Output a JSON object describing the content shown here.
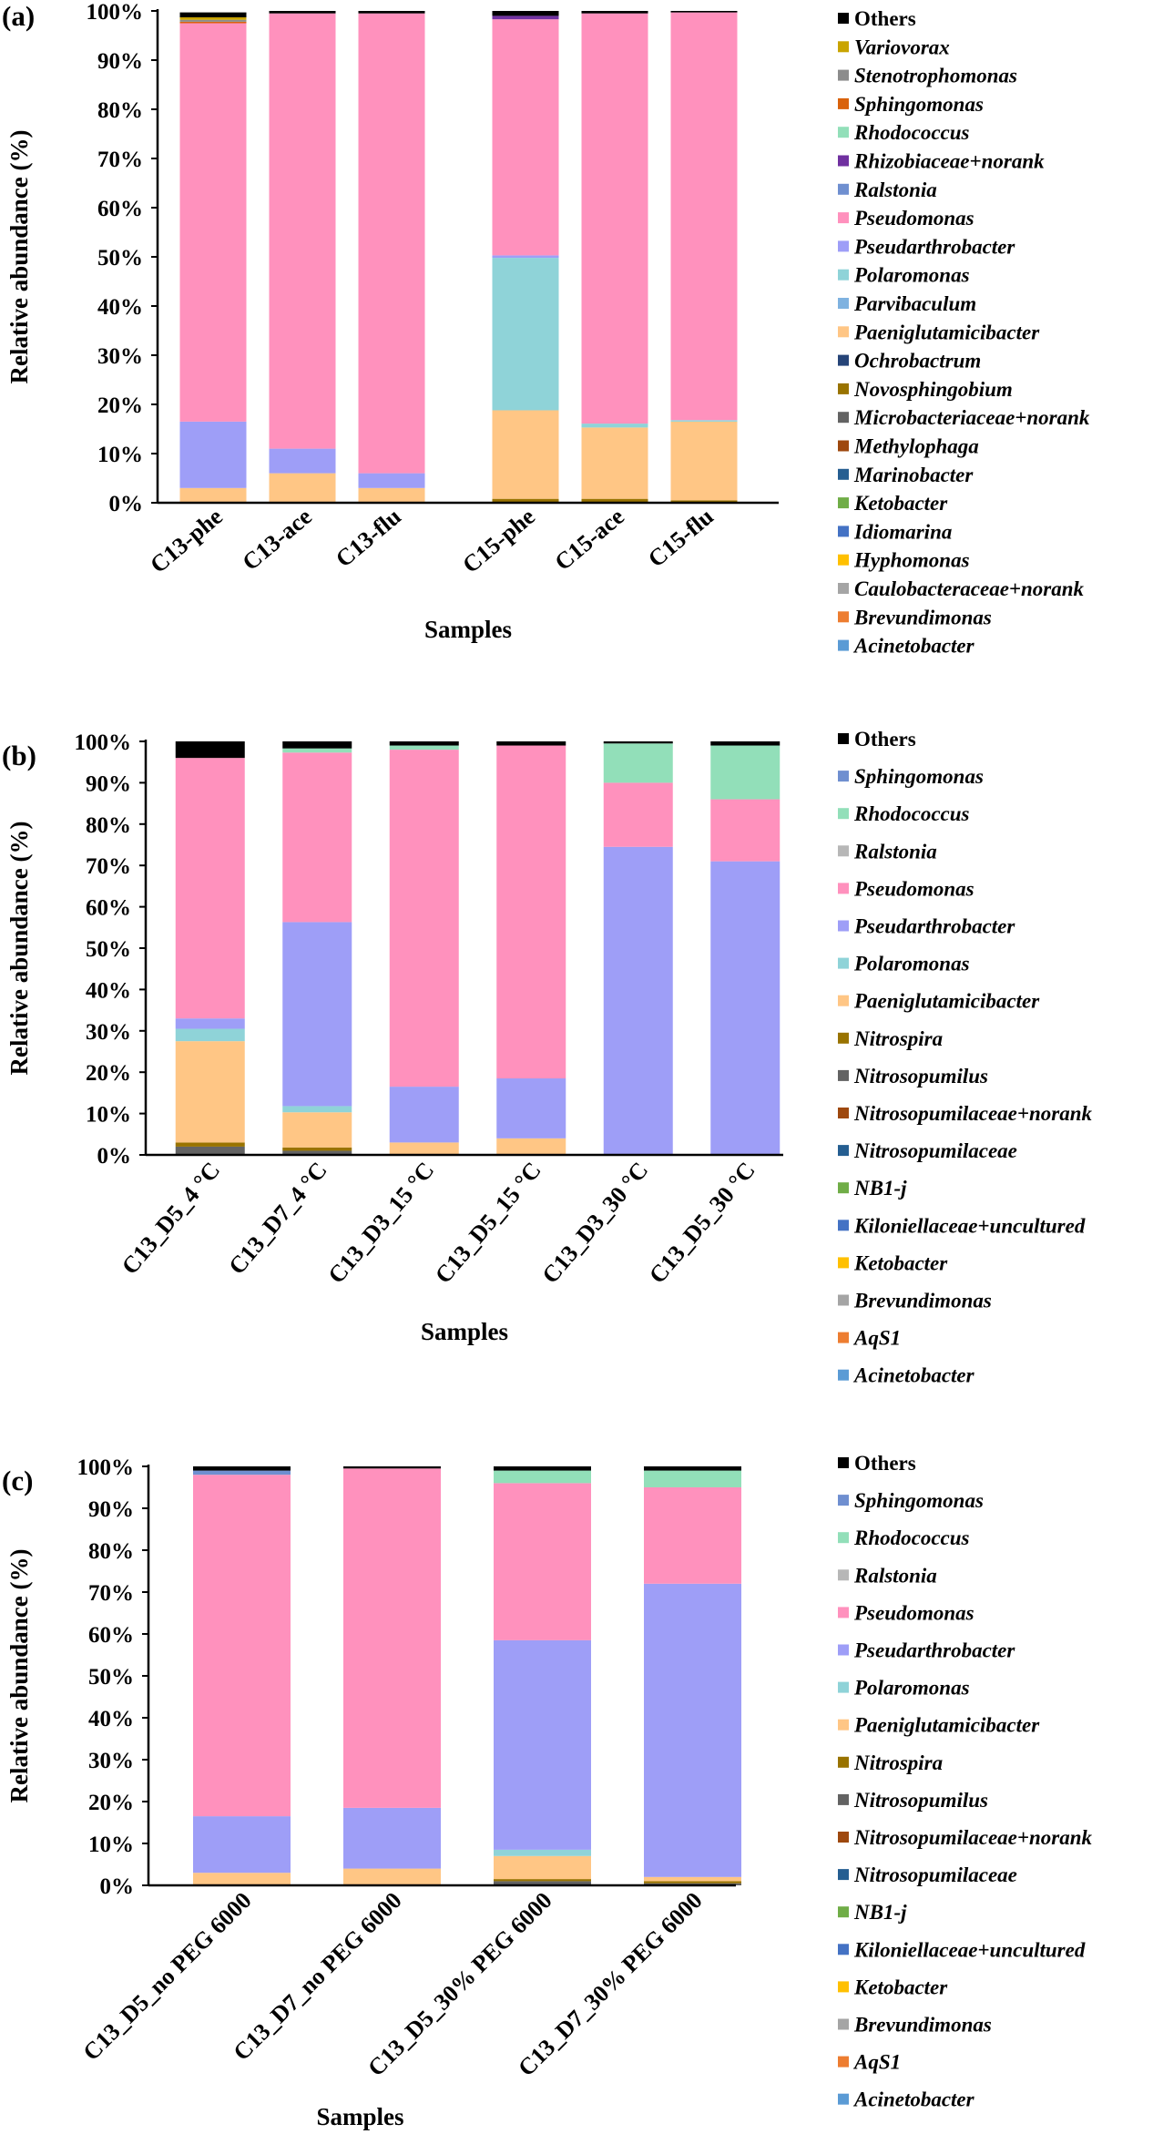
{
  "chart_data": [
    {
      "panel": "(a)",
      "type": "bar",
      "stacked": true,
      "ylabel": "Relative abundance (%)",
      "xlabel": "Samples",
      "ylim": [
        0,
        100
      ],
      "yticks": [
        "0%",
        "10%",
        "20%",
        "30%",
        "40%",
        "50%",
        "60%",
        "70%",
        "80%",
        "90%",
        "100%"
      ],
      "categories": [
        "C13-phe",
        "C13-ace",
        "C13-flu",
        "C15-phe",
        "C15-ace",
        "C15-flu"
      ],
      "category_slots": [
        0,
        1,
        2,
        3.5,
        4.5,
        5.5
      ],
      "series": [
        {
          "name": "Acinetobacter",
          "color": "#5b9bd5",
          "values": [
            0,
            0,
            0,
            0,
            0,
            0
          ]
        },
        {
          "name": "Brevundimonas",
          "color": "#ed7d31",
          "values": [
            0,
            0,
            0,
            0,
            0,
            0
          ]
        },
        {
          "name": "Caulobacteraceae+norank",
          "color": "#a5a5a5",
          "values": [
            0,
            0,
            0,
            0,
            0,
            0
          ]
        },
        {
          "name": "Hyphomonas",
          "color": "#ffc000",
          "values": [
            0,
            0,
            0,
            0,
            0,
            0
          ]
        },
        {
          "name": "Idiomarina",
          "color": "#4472c4",
          "values": [
            0,
            0,
            0,
            0,
            0,
            0
          ]
        },
        {
          "name": "Ketobacter",
          "color": "#70ad47",
          "values": [
            0,
            0,
            0,
            0,
            0,
            0
          ]
        },
        {
          "name": "Marinobacter",
          "color": "#255e91",
          "values": [
            0,
            0,
            0,
            0,
            0,
            0
          ]
        },
        {
          "name": "Methylophaga",
          "color": "#9e480e",
          "values": [
            0,
            0,
            0,
            0,
            0,
            0
          ]
        },
        {
          "name": "Microbacteriaceae+norank",
          "color": "#636363",
          "values": [
            0,
            0,
            0,
            0,
            0,
            0
          ]
        },
        {
          "name": "Novosphingobium",
          "color": "#997300",
          "values": [
            0,
            0,
            0,
            0.8,
            0.8,
            0.5
          ]
        },
        {
          "name": "Ochrobactrum",
          "color": "#264478",
          "values": [
            0,
            0,
            0,
            0,
            0,
            0
          ]
        },
        {
          "name": "Paeniglutamicibacter",
          "color": "#ffc685",
          "values": [
            3,
            6,
            3,
            18,
            14.5,
            16
          ]
        },
        {
          "name": "Parvibaculum",
          "color": "#7fb2e0",
          "values": [
            0,
            0,
            0,
            0,
            0,
            0
          ]
        },
        {
          "name": "Polaromonas",
          "color": "#8fd3d8",
          "values": [
            0,
            0,
            0,
            31,
            0.8,
            0.3
          ]
        },
        {
          "name": "Pseudarthrobacter",
          "color": "#9e9ef7",
          "values": [
            13.5,
            5,
            3,
            0.5,
            0,
            0
          ]
        },
        {
          "name": "Pseudomonas",
          "color": "#ff91bd",
          "values": [
            81,
            88.5,
            93.5,
            48,
            83.4,
            82.9
          ]
        },
        {
          "name": "Ralstonia",
          "color": "#6f8fd0",
          "values": [
            0,
            0,
            0,
            0,
            0,
            0
          ]
        },
        {
          "name": "Rhizobiaceae+norank",
          "color": "#7030a0",
          "values": [
            0,
            0,
            0,
            0.7,
            0,
            0
          ]
        },
        {
          "name": "Rhodococcus",
          "color": "#92dfb9",
          "values": [
            0,
            0,
            0,
            0,
            0,
            0
          ]
        },
        {
          "name": "Sphingomonas",
          "color": "#d9620c",
          "values": [
            0.3,
            0,
            0,
            0,
            0,
            0
          ]
        },
        {
          "name": "Stenotrophomonas",
          "color": "#8c8c8c",
          "values": [
            0.4,
            0,
            0,
            0,
            0,
            0
          ]
        },
        {
          "name": "Variovorax",
          "color": "#c9a400",
          "values": [
            0.5,
            0,
            0,
            0,
            0,
            0
          ]
        },
        {
          "name": "Others",
          "color": "#000000",
          "values": [
            1,
            0.5,
            0.5,
            1,
            0.5,
            0.3
          ]
        }
      ]
    },
    {
      "panel": "(b)",
      "type": "bar",
      "stacked": true,
      "ylabel": "Relative abundance (%)",
      "xlabel": "Samples",
      "ylim": [
        0,
        100
      ],
      "yticks": [
        "0%",
        "10%",
        "20%",
        "30%",
        "40%",
        "50%",
        "60%",
        "70%",
        "80%",
        "90%",
        "100%"
      ],
      "categories": [
        "C13_D5_4 °C",
        "C13_D7_4 °C",
        "C13_D3_15 °C",
        "C13_D5_15 °C",
        "C13_D3_30 °C",
        "C13_D5_30 °C"
      ],
      "category_slots": [
        0,
        1,
        2,
        3,
        4,
        5
      ],
      "series": [
        {
          "name": "Acinetobacter",
          "color": "#5b9bd5",
          "values": [
            0,
            0,
            0,
            0,
            0,
            0
          ]
        },
        {
          "name": "AqS1",
          "color": "#ed7d31",
          "values": [
            0,
            0,
            0,
            0,
            0,
            0
          ]
        },
        {
          "name": "Brevundimonas",
          "color": "#a5a5a5",
          "values": [
            0,
            0,
            0,
            0,
            0,
            0
          ]
        },
        {
          "name": "Ketobacter",
          "color": "#ffc000",
          "values": [
            0,
            0,
            0,
            0,
            0,
            0
          ]
        },
        {
          "name": "Kiloniellaceae+uncultured",
          "color": "#4472c4",
          "values": [
            0,
            0,
            0,
            0,
            0,
            0
          ]
        },
        {
          "name": "NB1-j",
          "color": "#70ad47",
          "values": [
            0,
            0,
            0,
            0,
            0,
            0
          ]
        },
        {
          "name": "Nitrosopumilaceae",
          "color": "#255e91",
          "values": [
            0,
            0,
            0,
            0,
            0,
            0
          ]
        },
        {
          "name": "Nitrosopumilaceae+norank",
          "color": "#9e480e",
          "values": [
            0,
            0,
            0,
            0,
            0,
            0
          ]
        },
        {
          "name": "Nitrosopumilus",
          "color": "#636363",
          "values": [
            2,
            1,
            0,
            0,
            0,
            0
          ]
        },
        {
          "name": "Nitrospira",
          "color": "#997300",
          "values": [
            1,
            0.8,
            0,
            0,
            0,
            0
          ]
        },
        {
          "name": "Paeniglutamicibacter",
          "color": "#ffc685",
          "values": [
            24.5,
            8.5,
            3,
            4,
            0,
            0
          ]
        },
        {
          "name": "Polaromonas",
          "color": "#8fd3d8",
          "values": [
            3,
            1.5,
            0,
            0,
            0,
            0
          ]
        },
        {
          "name": "Pseudarthrobacter",
          "color": "#9e9ef7",
          "values": [
            2.5,
            44.5,
            13.5,
            14.5,
            74.5,
            71
          ]
        },
        {
          "name": "Pseudomonas",
          "color": "#ff91bd",
          "values": [
            63,
            41,
            81.5,
            80.5,
            15.5,
            15
          ]
        },
        {
          "name": "Ralstonia",
          "color": "#b7b7b7",
          "values": [
            0,
            0,
            0,
            0,
            0,
            0
          ]
        },
        {
          "name": "Rhodococcus",
          "color": "#92dfb9",
          "values": [
            0,
            1,
            1,
            0,
            9.5,
            13
          ]
        },
        {
          "name": "Sphingomonas",
          "color": "#6f8fd0",
          "values": [
            0,
            0,
            0,
            0,
            0,
            0
          ]
        },
        {
          "name": "Others",
          "color": "#000000",
          "values": [
            4,
            1.7,
            1,
            1,
            0.5,
            1
          ]
        }
      ]
    },
    {
      "panel": "(c)",
      "type": "bar",
      "stacked": true,
      "ylabel": "Relative abundance (%)",
      "xlabel": "Samples",
      "ylim": [
        0,
        100
      ],
      "yticks": [
        "0%",
        "10%",
        "20%",
        "30%",
        "40%",
        "50%",
        "60%",
        "70%",
        "80%",
        "90%",
        "100%"
      ],
      "categories": [
        "C13_D5_no PEG 6000",
        "C13_D7_no PEG 6000",
        "C13_D5_30% PEG 6000",
        "C13_D7_30% PEG 6000"
      ],
      "category_slots": [
        0,
        1,
        2,
        3
      ],
      "series": [
        {
          "name": "Acinetobacter",
          "color": "#5b9bd5",
          "values": [
            0,
            0,
            0,
            0
          ]
        },
        {
          "name": "AqS1",
          "color": "#ed7d31",
          "values": [
            0,
            0,
            0,
            0
          ]
        },
        {
          "name": "Brevundimonas",
          "color": "#a5a5a5",
          "values": [
            0,
            0,
            0,
            0
          ]
        },
        {
          "name": "Ketobacter",
          "color": "#ffc000",
          "values": [
            0,
            0,
            0,
            0
          ]
        },
        {
          "name": "Kiloniellaceae+uncultured",
          "color": "#4472c4",
          "values": [
            0,
            0,
            0,
            0
          ]
        },
        {
          "name": "NB1-j",
          "color": "#70ad47",
          "values": [
            0,
            0,
            0,
            0
          ]
        },
        {
          "name": "Nitrosopumilaceae",
          "color": "#255e91",
          "values": [
            0,
            0,
            0,
            0
          ]
        },
        {
          "name": "Nitrosopumilaceae+norank",
          "color": "#9e480e",
          "values": [
            0,
            0,
            0,
            0
          ]
        },
        {
          "name": "Nitrosopumilus",
          "color": "#636363",
          "values": [
            0,
            0,
            1,
            0.5
          ]
        },
        {
          "name": "Nitrospira",
          "color": "#997300",
          "values": [
            0,
            0,
            0.5,
            0.5
          ]
        },
        {
          "name": "Paeniglutamicibacter",
          "color": "#ffc685",
          "values": [
            3,
            4,
            5.5,
            1
          ]
        },
        {
          "name": "Polaromonas",
          "color": "#8fd3d8",
          "values": [
            0,
            0,
            1.5,
            0
          ]
        },
        {
          "name": "Pseudarthrobacter",
          "color": "#9e9ef7",
          "values": [
            13.5,
            14.5,
            50,
            70
          ]
        },
        {
          "name": "Pseudomonas",
          "color": "#ff91bd",
          "values": [
            81.5,
            81,
            37.5,
            23
          ]
        },
        {
          "name": "Ralstonia",
          "color": "#b7b7b7",
          "values": [
            0,
            0,
            0,
            0
          ]
        },
        {
          "name": "Rhodococcus",
          "color": "#92dfb9",
          "values": [
            0,
            0,
            3,
            4
          ]
        },
        {
          "name": "Sphingomonas",
          "color": "#6f8fd0",
          "values": [
            1,
            0,
            0,
            0
          ]
        },
        {
          "name": "Others",
          "color": "#000000",
          "values": [
            1,
            0.5,
            1,
            1
          ]
        }
      ]
    }
  ]
}
